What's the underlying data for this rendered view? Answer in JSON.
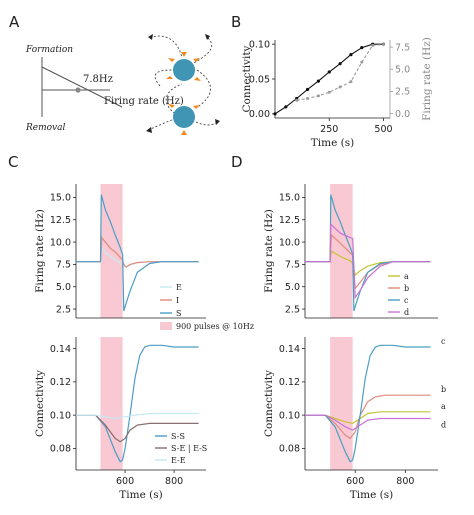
{
  "panels": {
    "A": {
      "label": "A",
      "formation_label": "Formation",
      "removal_label": "Removal",
      "threshold_label": "7.8Hz",
      "xaxis_label": "Firing rate (Hz)"
    },
    "B": {
      "label": "B"
    },
    "C": {
      "label": "C"
    },
    "D": {
      "label": "D"
    }
  },
  "colors": {
    "stim": "#f9c9d3",
    "E": "#c6e9f2",
    "I": "#e08a7e",
    "S": "#4c9cc8",
    "SE": "#8a6f6f",
    "a": "#c5c334",
    "b": "#e08a7e",
    "c": "#4aa0c0",
    "d": "#c872d6",
    "neuron": "#3f95b3",
    "synapse": "#f08a1e",
    "conn_black": "#111111",
    "rate_gray": "#9a9a9a"
  },
  "chart_data": [
    {
      "panel": "B",
      "type": "line",
      "xlabel": "Time (s)",
      "ylabel": "Connectivity",
      "y2label": "Firing rate (Hz)",
      "xlim": [
        0,
        530
      ],
      "ylim": [
        -0.006,
        0.106
      ],
      "y2lim": [
        -0.5,
        8.3
      ],
      "xticks": [
        250,
        500
      ],
      "yticks": [
        0.0,
        0.05,
        0.1
      ],
      "ytick_labels": [
        "0.00",
        "0.05",
        "0.10"
      ],
      "y2ticks": [
        0.0,
        2.5,
        5.0,
        7.5
      ],
      "y2tick_labels": [
        "0.0",
        "2.5",
        "5.0",
        "7.5"
      ],
      "series": [
        {
          "axis": "left",
          "x": [
            0,
            50,
            100,
            150,
            200,
            250,
            300,
            350,
            400,
            450,
            500
          ],
          "y": [
            0.0,
            0.01,
            0.022,
            0.035,
            0.047,
            0.06,
            0.072,
            0.085,
            0.095,
            0.1,
            0.1
          ]
        },
        {
          "axis": "right",
          "x": [
            100,
            150,
            200,
            250,
            300,
            350,
            400,
            450,
            500
          ],
          "y": [
            1.5,
            1.7,
            2.0,
            2.4,
            3.0,
            3.6,
            5.8,
            7.7,
            7.8
          ]
        }
      ]
    },
    {
      "panel": "C-top",
      "type": "line",
      "ylabel": "Firing rate (Hz)",
      "xlim": [
        400,
        930
      ],
      "ylim": [
        1.5,
        16.5
      ],
      "yticks": [
        2.5,
        5.0,
        7.5,
        10.0,
        12.5,
        15.0
      ],
      "ytick_labels": [
        "2.5",
        "5.0",
        "7.5",
        "10.0",
        "12.5",
        "15.0"
      ],
      "stim_span": [
        500,
        590
      ],
      "legend": [
        "E",
        "I",
        "S",
        "900 pulses @ 10Hz"
      ],
      "series": [
        {
          "name": "E",
          "x": [
            400,
            500,
            501,
            520,
            540,
            560,
            580,
            590,
            600,
            620,
            650,
            700,
            800,
            900
          ],
          "y": [
            7.8,
            7.8,
            9.5,
            8.8,
            8.4,
            8.0,
            7.7,
            7.4,
            7.2,
            7.4,
            7.7,
            7.8,
            7.8,
            7.8
          ]
        },
        {
          "name": "I",
          "x": [
            400,
            500,
            505,
            520,
            540,
            560,
            580,
            590,
            595,
            605,
            620,
            650,
            700,
            800,
            900
          ],
          "y": [
            7.8,
            7.8,
            10.5,
            10.0,
            9.3,
            8.9,
            8.3,
            8.0,
            7.5,
            7.2,
            7.5,
            7.7,
            7.8,
            7.8,
            7.8
          ]
        },
        {
          "name": "S",
          "x": [
            400,
            500,
            503,
            520,
            540,
            560,
            580,
            590,
            595,
            600,
            620,
            650,
            700,
            750,
            800,
            900
          ],
          "y": [
            7.8,
            7.8,
            15.3,
            13.6,
            12.3,
            10.8,
            9.4,
            8.6,
            2.3,
            2.8,
            4.5,
            6.6,
            7.6,
            7.8,
            7.8,
            7.8
          ]
        }
      ]
    },
    {
      "panel": "C-bottom",
      "type": "line",
      "xlabel": "Time (s)",
      "ylabel": "Connectivity",
      "xlim": [
        400,
        930
      ],
      "ylim": [
        0.067,
        0.147
      ],
      "xticks": [
        600,
        800
      ],
      "yticks": [
        0.08,
        0.1,
        0.12,
        0.14
      ],
      "ytick_labels": [
        "0.08",
        "0.10",
        "0.12",
        "0.14"
      ],
      "stim_span": [
        500,
        590
      ],
      "legend": [
        "S-S",
        "S-E | E-S",
        "E-E"
      ],
      "series": [
        {
          "name": "S-S",
          "x": [
            400,
            480,
            520,
            560,
            580,
            590,
            600,
            620,
            640,
            660,
            680,
            700,
            750,
            800,
            900
          ],
          "y": [
            0.1,
            0.1,
            0.093,
            0.078,
            0.072,
            0.073,
            0.08,
            0.1,
            0.122,
            0.136,
            0.141,
            0.142,
            0.142,
            0.141,
            0.141
          ]
        },
        {
          "name": "S-E | E-S",
          "x": [
            400,
            480,
            520,
            560,
            580,
            600,
            620,
            650,
            700,
            800,
            900
          ],
          "y": [
            0.1,
            0.1,
            0.094,
            0.086,
            0.084,
            0.086,
            0.091,
            0.094,
            0.095,
            0.095,
            0.095
          ]
        },
        {
          "name": "E-E",
          "x": [
            400,
            480,
            520,
            560,
            600,
            640,
            700,
            800,
            900
          ],
          "y": [
            0.1,
            0.1,
            0.099,
            0.098,
            0.099,
            0.1,
            0.101,
            0.101,
            0.101
          ]
        }
      ]
    },
    {
      "panel": "D-top",
      "type": "line",
      "ylabel": "Firing rate (Hz)",
      "xlim": [
        400,
        930
      ],
      "ylim": [
        1.5,
        16.5
      ],
      "yticks": [
        2.5,
        5.0,
        7.5,
        10.0,
        12.5,
        15.0
      ],
      "ytick_labels": [
        "2.5",
        "5.0",
        "7.5",
        "10.0",
        "12.5",
        "15.0"
      ],
      "stim_span": [
        500,
        590
      ],
      "legend": [
        "a",
        "b",
        "c",
        "d"
      ],
      "series": [
        {
          "name": "a",
          "x": [
            400,
            500,
            505,
            540,
            580,
            590,
            600,
            620,
            650,
            700,
            750,
            800,
            900
          ],
          "y": [
            7.8,
            7.8,
            9.0,
            8.4,
            7.9,
            7.6,
            6.3,
            6.8,
            7.3,
            7.7,
            7.8,
            7.8,
            7.8
          ]
        },
        {
          "name": "b",
          "x": [
            400,
            500,
            505,
            540,
            580,
            590,
            600,
            620,
            650,
            700,
            750,
            800,
            900
          ],
          "y": [
            7.8,
            7.8,
            10.8,
            9.9,
            8.8,
            8.5,
            4.8,
            5.5,
            6.6,
            7.5,
            7.8,
            7.8,
            7.8
          ]
        },
        {
          "name": "c",
          "x": [
            400,
            500,
            503,
            520,
            540,
            560,
            580,
            590,
            595,
            600,
            620,
            650,
            700,
            750,
            800,
            900
          ],
          "y": [
            7.8,
            7.8,
            15.3,
            13.6,
            12.3,
            10.8,
            9.4,
            8.6,
            2.3,
            2.8,
            4.5,
            6.6,
            7.6,
            7.8,
            7.8,
            7.8
          ]
        },
        {
          "name": "d",
          "x": [
            400,
            500,
            503,
            540,
            580,
            590,
            600,
            620,
            650,
            700,
            750,
            800,
            900
          ],
          "y": [
            7.8,
            7.8,
            12.0,
            11.0,
            10.5,
            10.4,
            3.8,
            4.6,
            6.0,
            7.3,
            7.8,
            7.8,
            7.8
          ]
        }
      ]
    },
    {
      "panel": "D-bottom",
      "type": "line",
      "xlabel": "Time (s)",
      "ylabel": "Connectivity",
      "xlim": [
        400,
        930
      ],
      "ylim": [
        0.067,
        0.147
      ],
      "xticks": [
        600,
        800
      ],
      "yticks": [
        0.08,
        0.1,
        0.12,
        0.14
      ],
      "ytick_labels": [
        "0.08",
        "0.10",
        "0.12",
        "0.14"
      ],
      "stim_span": [
        500,
        590
      ],
      "series": [
        {
          "name": "a",
          "x": [
            400,
            480,
            520,
            560,
            590,
            620,
            650,
            700,
            800,
            900
          ],
          "y": [
            0.1,
            0.1,
            0.098,
            0.096,
            0.095,
            0.098,
            0.101,
            0.102,
            0.102,
            0.102
          ]
        },
        {
          "name": "b",
          "x": [
            400,
            480,
            520,
            560,
            580,
            600,
            620,
            650,
            680,
            720,
            800,
            900
          ],
          "y": [
            0.1,
            0.1,
            0.095,
            0.088,
            0.086,
            0.09,
            0.1,
            0.108,
            0.111,
            0.112,
            0.112,
            0.112
          ]
        },
        {
          "name": "c",
          "x": [
            400,
            480,
            520,
            560,
            580,
            590,
            600,
            620,
            640,
            660,
            680,
            700,
            750,
            800,
            900
          ],
          "y": [
            0.1,
            0.1,
            0.093,
            0.078,
            0.072,
            0.073,
            0.08,
            0.1,
            0.122,
            0.136,
            0.141,
            0.142,
            0.142,
            0.141,
            0.141
          ]
        },
        {
          "name": "d",
          "x": [
            400,
            480,
            520,
            560,
            590,
            620,
            650,
            700,
            800,
            900
          ],
          "y": [
            0.1,
            0.1,
            0.097,
            0.093,
            0.091,
            0.094,
            0.097,
            0.098,
            0.098,
            0.098
          ]
        }
      ],
      "end_labels": [
        "c",
        "b",
        "a",
        "d"
      ]
    }
  ]
}
